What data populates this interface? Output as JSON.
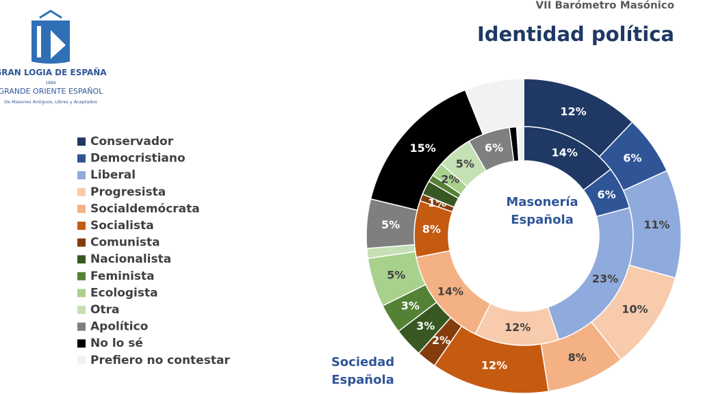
{
  "header": {
    "subtitle": "VII Barómetro Masónico",
    "logo": {
      "line1": "GRAN LOGIA DE ESPAÑA",
      "year": "1889",
      "line2": "GRANDE ORIENTE ESPAÑOL",
      "line3": "De Masones Antiguos, Libres y Aceptados"
    }
  },
  "chart_data": {
    "type": "donut",
    "title": "Identidad política",
    "categories": [
      "Conservador",
      "Democristiano",
      "Liberal",
      "Progresista",
      "Socialdemócrata",
      "Socialista",
      "Comunista",
      "Nacionalista",
      "Feminista",
      "Ecologista",
      "Otra",
      "Apolítico",
      "No lo sé",
      "Prefiero no contestar"
    ],
    "colors": [
      "#1f3864",
      "#2f5597",
      "#8faadc",
      "#f8cbad",
      "#f4b183",
      "#c55a11",
      "#843c0c",
      "#385723",
      "#548235",
      "#a9d18e",
      "#c5e0b4",
      "#7f7f7f",
      "#000000",
      "#f2f2f2"
    ],
    "series": [
      {
        "name": "Masonería Española",
        "values": [
          14,
          6,
          23,
          12,
          14,
          8,
          1,
          2,
          1,
          2,
          5,
          6,
          1,
          1
        ],
        "value_labels": [
          "14%",
          "6%",
          "23%",
          "12%",
          "14%",
          "8%",
          "1%",
          null,
          null,
          "2%",
          "5%",
          "6%",
          null,
          null
        ]
      },
      {
        "name": "Sociedad Española",
        "values": [
          12,
          6,
          11,
          10,
          8,
          12,
          2,
          3,
          3,
          5,
          1,
          5,
          15,
          6
        ],
        "value_labels": [
          "12%",
          "6%",
          "11%",
          "10%",
          "8%",
          "12%",
          "2%",
          "3%",
          "3%",
          "5%",
          null,
          "5%",
          "15%",
          null
        ]
      }
    ]
  }
}
